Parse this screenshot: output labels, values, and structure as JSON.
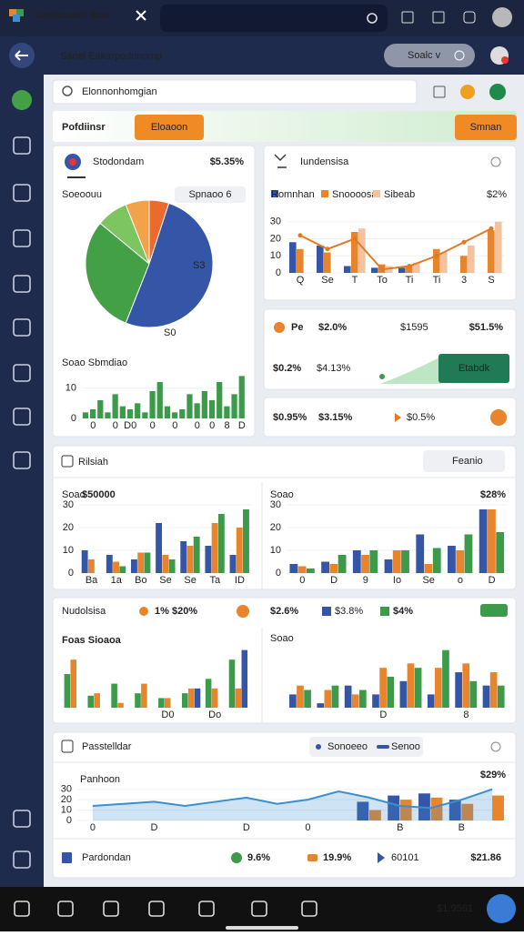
{
  "header": {
    "tab_title": "Ueelacaaoi Ibaa",
    "page_title": "Sanel Eakarpodonomp",
    "account": "Soalc v"
  },
  "search": {
    "placeholder": "Elonnonhomgian"
  },
  "tabs": {
    "label": "Pofdiinsr",
    "button": "Eloaoon",
    "right_button": "Smnan"
  },
  "cards": {
    "overview": {
      "title": "Stodondam",
      "value": "$5.35%",
      "filter_label": "Soeoouu",
      "filter": "Spnaoo 6",
      "pie_labels": [
        "S3",
        "S0"
      ],
      "bars_title": "Soao Sbmdiao"
    },
    "trend": {
      "title": "Iundensisa",
      "legend_value": "$2%"
    },
    "kpi1": {
      "a_label": "Pe",
      "a": "$2.0%",
      "b": "$1595",
      "c": "$51.5%",
      "d": "$0.2%",
      "e": "$4.13%",
      "button": "Etabdk"
    },
    "kpi2": {
      "a": "$0.95%",
      "b": "$3.15%",
      "c": "$0.5%"
    },
    "rilsiah": {
      "title": "Rilsiah",
      "filter": "Feanio",
      "left_label": "Soao",
      "left_value": "$50000",
      "right_label": "Soao",
      "right_value": "$28%"
    },
    "nudolsisa": {
      "title": "Nudolsisa",
      "a": "1% $20%",
      "b": "$2.6%",
      "c": "$3.8%",
      "d": "$4%",
      "left_label": "Foas Sioaoa",
      "right_label": "Soao"
    },
    "passtelldar": {
      "title": "Passtelldar",
      "filter_a": "Sonoeeo",
      "filter_b": "Senoo",
      "chart_label": "Panhoon",
      "chart_value": "$29%",
      "footer_label": "Pardondan",
      "a": "9.6%",
      "b": "19.9%",
      "c": "60101",
      "d": "$21.86"
    }
  },
  "status": {
    "clock": "$1.9561"
  },
  "chart_data": [
    {
      "type": "pie",
      "values": [
        5,
        51,
        30,
        8,
        6
      ],
      "colors": [
        "#ec6a2c",
        "#3556a6",
        "#43a047",
        "#7cc560",
        "#f2a24a"
      ]
    },
    {
      "type": "bar",
      "categories": [
        null,
        "0",
        null,
        null,
        "0",
        null,
        "D0",
        null,
        null,
        "0",
        null,
        null,
        "0",
        null,
        null,
        "0",
        null,
        "0",
        null,
        "8",
        null,
        "D"
      ],
      "series": [
        {
          "color": "#3d9a4a",
          "values": [
            2,
            3,
            6,
            2,
            8,
            4,
            3,
            5,
            2,
            9,
            12,
            4,
            2,
            3,
            8,
            5,
            9,
            6,
            12,
            4,
            8,
            14
          ]
        }
      ],
      "ylim": [
        0,
        15
      ],
      "yticks": [
        0,
        10
      ]
    },
    {
      "type": "bar",
      "categories": [
        "Q",
        "Se",
        "T",
        "To",
        "Ti",
        "Ti",
        "3",
        "S"
      ],
      "series": [
        {
          "name": "Romnhan",
          "color": "#3556a6",
          "values": [
            18,
            16,
            4,
            3,
            3,
            0,
            0,
            0
          ]
        },
        {
          "name": "Snoooosa",
          "color": "#e8842c",
          "values": [
            14,
            12,
            24,
            5,
            4,
            14,
            10,
            25
          ]
        },
        {
          "name": "Sibeab",
          "color": "#f5c2a0",
          "values": [
            0,
            0,
            26,
            4,
            6,
            12,
            16,
            30
          ]
        },
        {
          "color": "#e07b24",
          "kind": "line",
          "values": [
            22,
            14,
            20,
            2,
            4,
            10,
            18,
            26
          ]
        }
      ],
      "ylim": [
        0,
        40
      ],
      "yticks": [
        0,
        10,
        20,
        30
      ]
    },
    {
      "type": "bar",
      "categories": [
        "Ba",
        "1a",
        "Bo",
        "Se",
        "Se",
        "Ta",
        "ID"
      ],
      "series": [
        {
          "color": "#3556a6",
          "values": [
            10,
            8,
            6,
            22,
            14,
            12,
            8
          ]
        },
        {
          "color": "#e8842c",
          "values": [
            6,
            5,
            9,
            8,
            12,
            22,
            20
          ]
        },
        {
          "color": "#3d9a4a",
          "values": [
            0,
            3,
            9,
            6,
            16,
            26,
            28
          ]
        }
      ],
      "ylim": [
        0,
        30
      ],
      "yticks": [
        0,
        10,
        20,
        30
      ]
    },
    {
      "type": "bar",
      "categories": [
        "0",
        "D",
        "9",
        "Io",
        "Se",
        "o",
        "D"
      ],
      "series": [
        {
          "color": "#3556a6",
          "values": [
            4,
            5,
            10,
            6,
            17,
            12,
            28
          ]
        },
        {
          "color": "#e8842c",
          "values": [
            3,
            4,
            8,
            10,
            4,
            10,
            28
          ]
        },
        {
          "color": "#3d9a4a",
          "values": [
            2,
            8,
            10,
            10,
            11,
            17,
            18
          ]
        }
      ],
      "ylim": [
        0,
        30
      ],
      "yticks": [
        0,
        10,
        20,
        30
      ]
    },
    {
      "type": "bar",
      "categories": [
        null,
        null,
        null,
        null,
        "D0",
        null,
        "Do",
        null
      ],
      "series": [
        {
          "color": "#3d9a4a",
          "values": [
            14,
            5,
            10,
            6,
            4,
            6,
            12,
            20
          ]
        },
        {
          "color": "#e8842c",
          "values": [
            20,
            6,
            2,
            10,
            4,
            8,
            8,
            8
          ]
        },
        {
          "color": "#3556a6",
          "values": [
            0,
            0,
            0,
            0,
            0,
            8,
            0,
            24
          ]
        }
      ],
      "ylim": [
        0,
        25
      ]
    },
    {
      "type": "bar",
      "categories": [
        null,
        null,
        null,
        "D",
        null,
        null,
        "8",
        null
      ],
      "series": [
        {
          "color": "#3556a6",
          "values": [
            6,
            2,
            10,
            6,
            12,
            6,
            16,
            10
          ]
        },
        {
          "color": "#e8842c",
          "values": [
            10,
            8,
            6,
            18,
            20,
            18,
            20,
            16
          ]
        },
        {
          "color": "#3d9a4a",
          "values": [
            8,
            10,
            8,
            14,
            18,
            26,
            12,
            10
          ]
        }
      ],
      "ylim": [
        0,
        30
      ]
    },
    {
      "type": "bar",
      "categories": [
        "0",
        null,
        "D",
        null,
        null,
        "D",
        null,
        "0",
        null,
        null,
        "B",
        null,
        "B",
        null
      ],
      "series": [
        {
          "color": "#3a8fd0",
          "kind": "area",
          "values": [
            14,
            16,
            18,
            14,
            18,
            22,
            16,
            20,
            28,
            22,
            14,
            12,
            20,
            30
          ]
        },
        {
          "color": "#3556a6",
          "values": [
            null,
            null,
            null,
            null,
            null,
            null,
            null,
            null,
            null,
            18,
            24,
            26,
            20,
            null
          ]
        },
        {
          "color": "#e8842c",
          "values": [
            null,
            null,
            null,
            null,
            null,
            null,
            null,
            null,
            null,
            10,
            20,
            22,
            16,
            24
          ]
        }
      ],
      "ylim": [
        0,
        35
      ],
      "yticks": [
        0,
        10,
        20,
        30
      ]
    }
  ]
}
